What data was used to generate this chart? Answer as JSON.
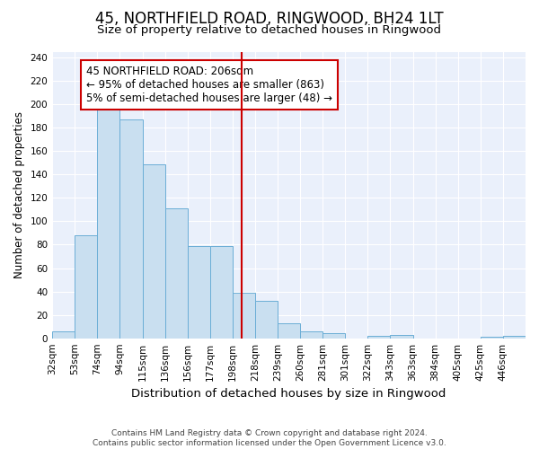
{
  "title": "45, NORTHFIELD ROAD, RINGWOOD, BH24 1LT",
  "subtitle": "Size of property relative to detached houses in Ringwood",
  "xlabel": "Distribution of detached houses by size in Ringwood",
  "ylabel": "Number of detached properties",
  "bar_labels": [
    "32sqm",
    "53sqm",
    "74sqm",
    "94sqm",
    "115sqm",
    "136sqm",
    "156sqm",
    "177sqm",
    "198sqm",
    "218sqm",
    "239sqm",
    "260sqm",
    "281sqm",
    "301sqm",
    "322sqm",
    "343sqm",
    "363sqm",
    "384sqm",
    "405sqm",
    "425sqm",
    "446sqm"
  ],
  "bar_values": [
    6,
    88,
    196,
    187,
    149,
    111,
    79,
    79,
    39,
    32,
    13,
    6,
    4,
    0,
    2,
    3,
    0,
    0,
    0,
    1,
    2
  ],
  "bar_color": "#c9dff0",
  "bar_edge_color": "#6baed6",
  "vline_color": "#cc0000",
  "annotation_text": "45 NORTHFIELD ROAD: 206sqm\n← 95% of detached houses are smaller (863)\n5% of semi-detached houses are larger (48) →",
  "annotation_box_color": "#ffffff",
  "annotation_box_edge": "#cc0000",
  "ylim": [
    0,
    245
  ],
  "yticks": [
    0,
    20,
    40,
    60,
    80,
    100,
    120,
    140,
    160,
    180,
    200,
    220,
    240
  ],
  "footer_text": "Contains HM Land Registry data © Crown copyright and database right 2024.\nContains public sector information licensed under the Open Government Licence v3.0.",
  "title_fontsize": 12,
  "subtitle_fontsize": 9.5,
  "xlabel_fontsize": 9.5,
  "ylabel_fontsize": 8.5,
  "tick_fontsize": 7.5,
  "annotation_fontsize": 8.5,
  "footer_fontsize": 6.5,
  "bg_color": "#eaf0fb"
}
